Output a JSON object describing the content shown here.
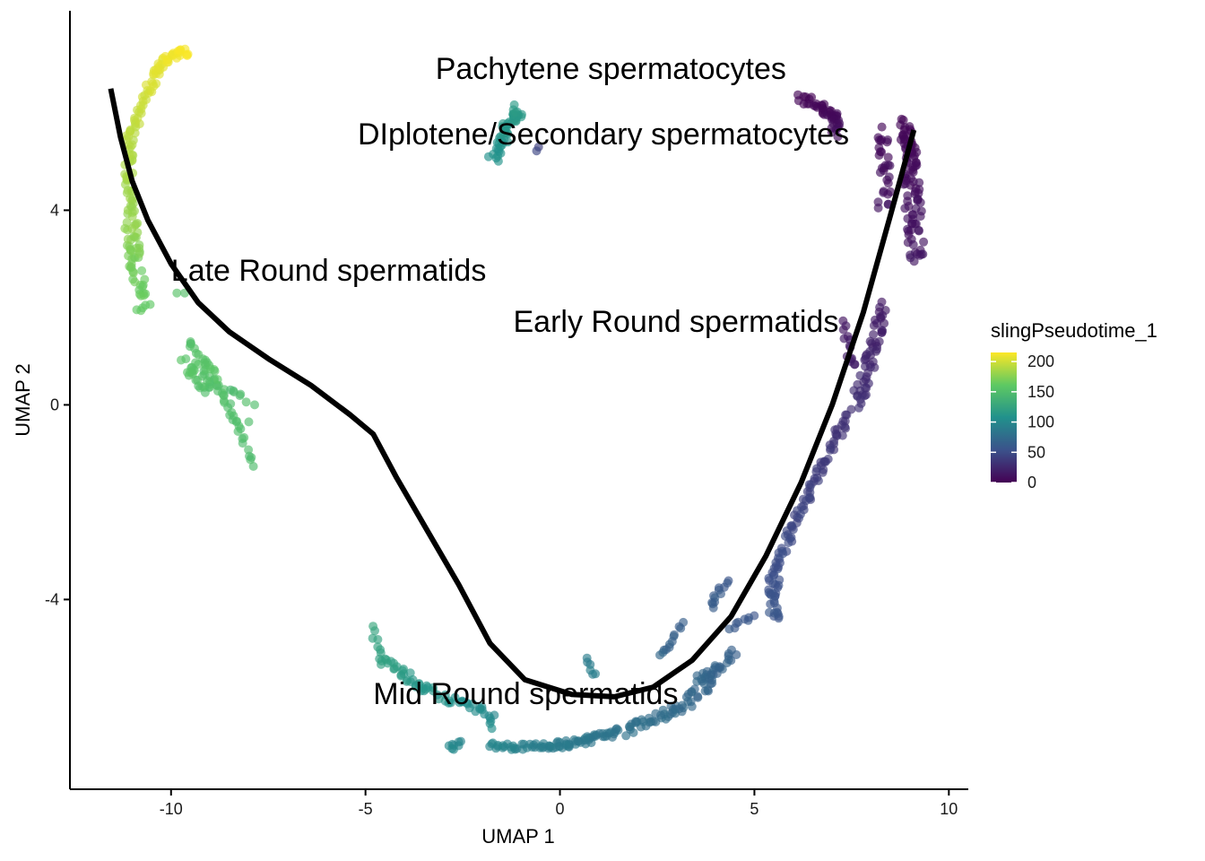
{
  "chart_data": {
    "type": "scatter",
    "xlabel": "UMAP 1",
    "ylabel": "UMAP 2",
    "xlim": [
      -12.6,
      10.5
    ],
    "ylim": [
      -7.9,
      8.1
    ],
    "x_ticks": [
      -10,
      -5,
      0,
      5,
      10
    ],
    "x_tick_labels": [
      "-10",
      "-5",
      "0",
      "5",
      "10"
    ],
    "y_ticks": [
      -4,
      0,
      4
    ],
    "y_tick_labels": [
      "-4",
      "0",
      "4"
    ],
    "grid": false,
    "legend": {
      "title": "slingPseudotime_1",
      "placement": "right",
      "range": [
        0,
        215
      ],
      "ticks": [
        200,
        150,
        100,
        50,
        0
      ],
      "tick_labels": [
        "200",
        "150",
        "100",
        "50",
        "0"
      ],
      "colormap": [
        "#440154",
        "#3b528b",
        "#21918c",
        "#5ec962",
        "#fde725"
      ]
    },
    "cluster_labels": [
      {
        "text": "Pachytene spermatocytes",
        "x": -3.2,
        "y": 6.7
      },
      {
        "text": "DIplotene/Secondary spermatocytes",
        "x": -5.2,
        "y": 5.35
      },
      {
        "text": "Late Round spermatids",
        "x": -10.0,
        "y": 2.55
      },
      {
        "text": "Early Round spermatids",
        "x": -1.2,
        "y": 1.5
      },
      {
        "text": "Mid Round spermatids",
        "x": -4.8,
        "y": -6.15
      }
    ],
    "trajectory": [
      [
        -11.55,
        6.5
      ],
      [
        -11.3,
        5.5
      ],
      [
        -11.0,
        4.6
      ],
      [
        -10.6,
        3.8
      ],
      [
        -10.0,
        2.9
      ],
      [
        -9.3,
        2.1
      ],
      [
        -8.5,
        1.5
      ],
      [
        -7.5,
        0.95
      ],
      [
        -6.4,
        0.4
      ],
      [
        -5.4,
        -0.2
      ],
      [
        -4.8,
        -0.6
      ],
      [
        -4.2,
        -1.5
      ],
      [
        -3.4,
        -2.6
      ],
      [
        -2.6,
        -3.7
      ],
      [
        -1.8,
        -4.9
      ],
      [
        -0.9,
        -5.65
      ],
      [
        0.3,
        -5.95
      ],
      [
        1.4,
        -6.0
      ],
      [
        2.4,
        -5.8
      ],
      [
        3.4,
        -5.25
      ],
      [
        4.4,
        -4.35
      ],
      [
        5.3,
        -3.1
      ],
      [
        6.2,
        -1.6
      ],
      [
        7.0,
        0.0
      ],
      [
        7.8,
        1.9
      ],
      [
        8.5,
        3.9
      ],
      [
        9.1,
        5.65
      ]
    ],
    "series": [
      {
        "segments": [
          {
            "x0": 6.1,
            "y0": 6.3,
            "x1": 7.2,
            "y1": 6.1,
            "x2": 7.1,
            "y2": 5.6,
            "n": 45,
            "t0": 1,
            "t1": 8,
            "spread": 0.12
          },
          {
            "x0": 8.9,
            "y0": 5.8,
            "x1": 9.0,
            "y1": 4.8,
            "x2": 9.2,
            "y2": 3.0,
            "n": 95,
            "t0": 2,
            "t1": 14,
            "spread": 0.2
          },
          {
            "x0": 8.2,
            "y0": 5.6,
            "x1": 8.5,
            "y1": 4.9,
            "x2": 8.3,
            "y2": 4.1,
            "n": 30,
            "t0": 4,
            "t1": 12,
            "spread": 0.15
          },
          {
            "x0": 8.3,
            "y0": 2.0,
            "x1": 8.0,
            "y1": 0.9,
            "x2": 7.6,
            "y2": 0.0,
            "n": 55,
            "t0": 15,
            "t1": 30,
            "spread": 0.15
          },
          {
            "x0": 7.3,
            "y0": 1.7,
            "x1": 7.4,
            "y1": 1.1,
            "x2": 7.6,
            "y2": 0.8,
            "n": 14,
            "t0": 12,
            "t1": 20,
            "spread": 0.08
          },
          {
            "x0": 7.4,
            "y0": -0.2,
            "x1": 6.4,
            "y1": -1.8,
            "x2": 5.5,
            "y2": -3.4,
            "n": 75,
            "t0": 30,
            "t1": 52,
            "spread": 0.1
          },
          {
            "x0": 5.5,
            "y0": -3.4,
            "x1": 5.5,
            "y1": -3.9,
            "x2": 5.5,
            "y2": -4.4,
            "n": 30,
            "t0": 50,
            "t1": 58,
            "spread": 0.15
          },
          {
            "x0": 4.3,
            "y0": -3.6,
            "x1": 4.0,
            "y1": -3.9,
            "x2": 3.9,
            "y2": -4.2,
            "n": 12,
            "t0": 58,
            "t1": 64,
            "spread": 0.08
          },
          {
            "x0": 5.0,
            "y0": -4.3,
            "x1": 4.6,
            "y1": -4.5,
            "x2": 4.4,
            "y2": -4.6,
            "n": 8,
            "t0": 56,
            "t1": 60,
            "spread": 0.06
          },
          {
            "x0": 3.2,
            "y0": -4.5,
            "x1": 2.8,
            "y1": -4.9,
            "x2": 2.6,
            "y2": -5.2,
            "n": 12,
            "t0": 62,
            "t1": 70,
            "spread": 0.07
          },
          {
            "x0": 4.5,
            "y0": -5.1,
            "x1": 4.0,
            "y1": -5.5,
            "x2": 3.5,
            "y2": -5.6,
            "n": 25,
            "t0": 66,
            "t1": 72,
            "spread": 0.1
          },
          {
            "x0": 4.0,
            "y0": -5.6,
            "x1": 3.5,
            "y1": -6.0,
            "x2": 2.9,
            "y2": -6.3,
            "n": 28,
            "t0": 68,
            "t1": 74,
            "spread": 0.12
          },
          {
            "x0": 2.9,
            "y0": -6.3,
            "x1": 2.3,
            "y1": -6.5,
            "x2": 1.7,
            "y2": -6.7,
            "n": 28,
            "t0": 74,
            "t1": 80,
            "spread": 0.1
          },
          {
            "x0": 1.5,
            "y0": -6.7,
            "x1": 0.5,
            "y1": -7.0,
            "x2": -0.4,
            "y2": -7.0,
            "n": 55,
            "t0": 80,
            "t1": 90,
            "spread": 0.08
          },
          {
            "x0": -0.4,
            "y0": -7.0,
            "x1": -1.2,
            "y1": -7.05,
            "x2": -1.8,
            "y2": -7.0,
            "n": 28,
            "t0": 90,
            "t1": 98,
            "spread": 0.06
          },
          {
            "x0": -2.6,
            "y0": -6.95,
            "x1": -2.7,
            "y1": -7.0,
            "x2": -2.8,
            "y2": -7.05,
            "n": 8,
            "t0": 98,
            "t1": 100,
            "spread": 0.06
          },
          {
            "x0": 0.7,
            "y0": -5.25,
            "x1": 0.8,
            "y1": -5.4,
            "x2": 0.9,
            "y2": -5.55,
            "n": 6,
            "t0": 88,
            "t1": 92,
            "spread": 0.05
          },
          {
            "x0": -1.7,
            "y0": -6.4,
            "x1": -2.5,
            "y1": -6.15,
            "x2": -3.4,
            "y2": -5.85,
            "n": 30,
            "t0": 100,
            "t1": 112,
            "spread": 0.1
          },
          {
            "x0": -3.4,
            "y0": -5.85,
            "x1": -4.0,
            "y1": -5.6,
            "x2": -4.6,
            "y2": -5.2,
            "n": 28,
            "t0": 110,
            "t1": 122,
            "spread": 0.1
          },
          {
            "x0": -4.6,
            "y0": -5.2,
            "x1": -4.7,
            "y1": -4.9,
            "x2": -4.85,
            "y2": -4.6,
            "n": 8,
            "t0": 120,
            "t1": 126,
            "spread": 0.06
          },
          {
            "x0": -1.7,
            "y0": 5.1,
            "x1": -1.3,
            "y1": 5.8,
            "x2": -1.05,
            "y2": 6.1,
            "n": 55,
            "t0": 108,
            "t1": 116,
            "spread": 0.14
          },
          {
            "x0": -7.9,
            "y0": -1.25,
            "x1": -8.4,
            "y1": -0.2,
            "x2": -8.7,
            "y2": 0.3,
            "n": 25,
            "t0": 148,
            "t1": 152,
            "spread": 0.07
          },
          {
            "x0": -8.8,
            "y0": 0.3,
            "x1": -9.2,
            "y1": 0.5,
            "x2": -9.6,
            "y2": 0.85,
            "n": 35,
            "t0": 150,
            "t1": 156,
            "spread": 0.15
          },
          {
            "x0": -9.6,
            "y0": 1.3,
            "x1": -9.1,
            "y1": 0.9,
            "x2": -8.9,
            "y2": 0.6,
            "n": 18,
            "t0": 152,
            "t1": 158,
            "spread": 0.1
          },
          {
            "x0": -8.5,
            "y0": 0.35,
            "x1": -8.3,
            "y1": 0.3,
            "x2": -8.1,
            "y2": 0.1,
            "n": 6,
            "t0": 146,
            "t1": 150,
            "spread": 0.05
          },
          {
            "x0": -10.7,
            "y0": 2.0,
            "x1": -11.0,
            "y1": 3.0,
            "x2": -11.05,
            "y2": 3.9,
            "n": 55,
            "t0": 160,
            "t1": 180,
            "spread": 0.18
          },
          {
            "x0": -11.05,
            "y0": 3.9,
            "x1": -11.15,
            "y1": 5.0,
            "x2": -11.0,
            "y2": 5.8,
            "n": 45,
            "t0": 180,
            "t1": 195,
            "spread": 0.12
          },
          {
            "x0": -10.9,
            "y0": 5.8,
            "x1": -10.6,
            "y1": 6.5,
            "x2": -10.3,
            "y2": 6.95,
            "n": 30,
            "t0": 195,
            "t1": 206,
            "spread": 0.1
          },
          {
            "x0": -10.3,
            "y0": 6.95,
            "x1": -10.0,
            "y1": 7.2,
            "x2": -9.6,
            "y2": 7.25,
            "n": 28,
            "t0": 206,
            "t1": 215,
            "spread": 0.08
          }
        ],
        "extra_points": [
          {
            "x": -0.55,
            "y": 5.3,
            "t": 40
          },
          {
            "x": -0.6,
            "y": 5.22,
            "t": 45
          },
          {
            "x": -9.85,
            "y": 2.3,
            "t": 155
          },
          {
            "x": -9.65,
            "y": 2.3,
            "t": 152
          },
          {
            "x": -7.85,
            "y": 0.0,
            "t": 150
          },
          {
            "x": -8.0,
            "y": -0.35,
            "t": 150
          },
          {
            "x": -1.8,
            "y": -6.55,
            "t": 104
          },
          {
            "x": -1.75,
            "y": -6.65,
            "t": 106
          }
        ]
      }
    ]
  }
}
